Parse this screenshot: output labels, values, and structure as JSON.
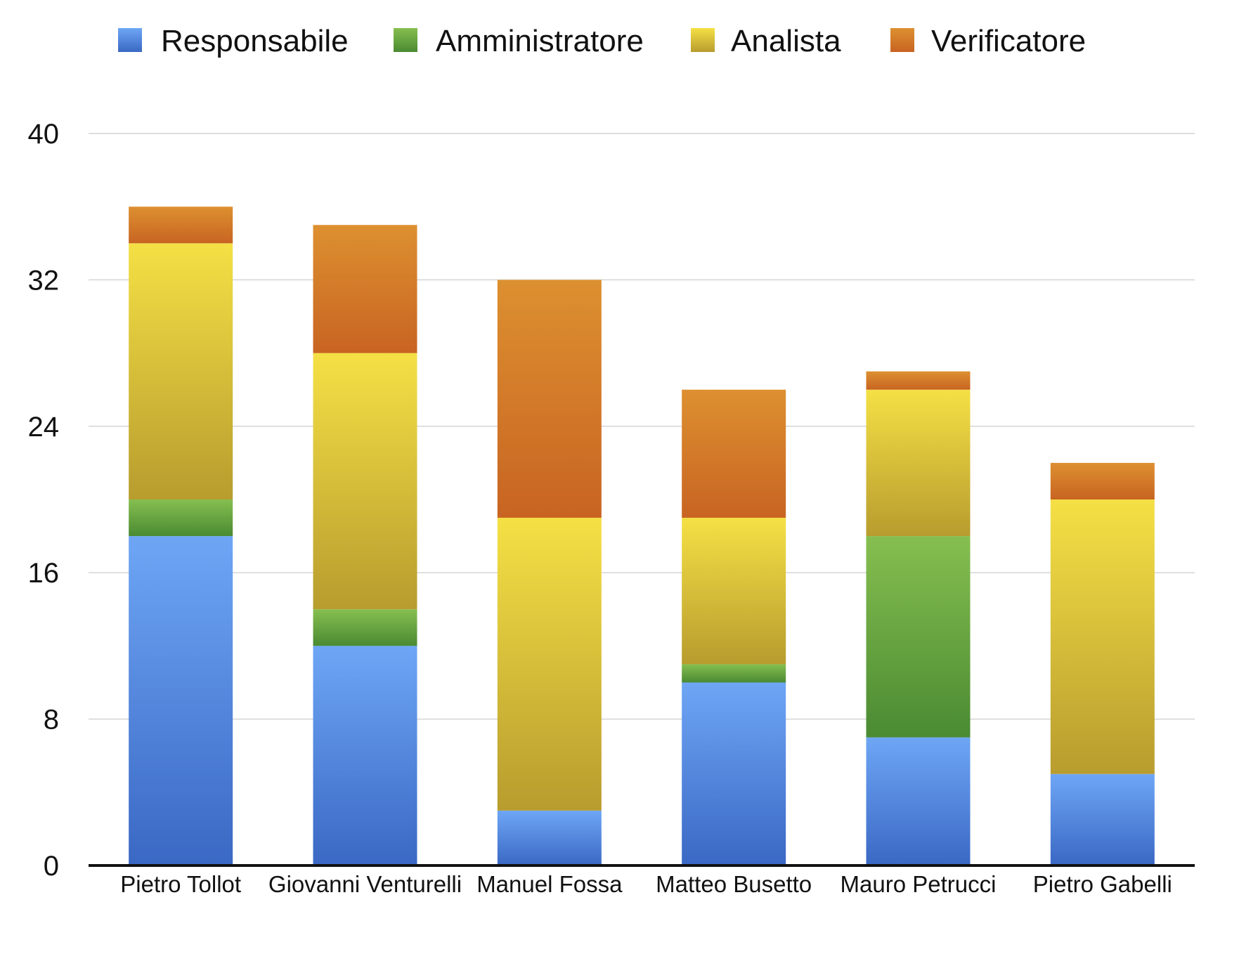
{
  "chart_data": {
    "type": "bar",
    "stacked": true,
    "title": "",
    "xlabel": "",
    "ylabel": "",
    "categories": [
      "Pietro Tollot",
      "Giovanni Venturelli",
      "Manuel Fossa",
      "Matteo Busetto",
      "Mauro Petrucci",
      "Pietro Gabelli"
    ],
    "series": [
      {
        "name": "Responsabile",
        "values": [
          18,
          12,
          3,
          10,
          7,
          5
        ],
        "color_light": "#6ea6f5",
        "color_dark": "#3a68c4"
      },
      {
        "name": "Amministratore",
        "values": [
          2,
          2,
          0,
          1,
          11,
          0
        ],
        "color_light": "#86bf50",
        "color_dark": "#4a8a32"
      },
      {
        "name": "Analista",
        "values": [
          14,
          14,
          16,
          8,
          8,
          15
        ],
        "color_light": "#f5e045",
        "color_dark": "#b89c2e"
      },
      {
        "name": "Verificatore",
        "values": [
          2,
          7,
          13,
          7,
          1,
          2
        ],
        "color_light": "#dd9030",
        "color_dark": "#c86422"
      }
    ],
    "ylim": [
      0,
      40
    ],
    "yticks": [
      0,
      8,
      16,
      24,
      32,
      40
    ],
    "grid": true,
    "legend_position": "top"
  }
}
